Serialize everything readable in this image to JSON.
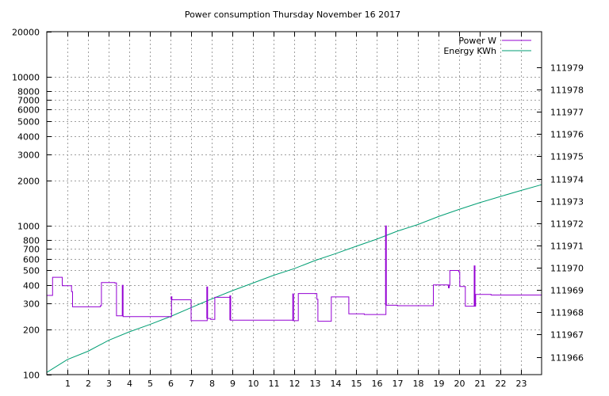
{
  "chart_data": {
    "type": "line",
    "title": "Power consumption Thursday November 16 2017",
    "xlabel": "",
    "ylabel": "",
    "x_range": [
      0,
      24
    ],
    "x_ticks": [
      1,
      2,
      3,
      4,
      5,
      6,
      7,
      8,
      9,
      10,
      11,
      12,
      13,
      14,
      15,
      16,
      17,
      18,
      19,
      20,
      21,
      22,
      23
    ],
    "y_scale": "log",
    "y_range": [
      100,
      20000
    ],
    "y_ticks": [
      {
        "value": 100,
        "label": "100"
      },
      {
        "value": 200,
        "label": "200"
      },
      {
        "value": 300,
        "label": "300"
      },
      {
        "value": 400,
        "label": "400"
      },
      {
        "value": 500,
        "label": "500"
      },
      {
        "value": 600,
        "label": "600"
      },
      {
        "value": 700,
        "label": "700"
      },
      {
        "value": 800,
        "label": "800"
      },
      {
        "value": 1000,
        "label": "1000"
      },
      {
        "value": 2000,
        "label": "2000"
      },
      {
        "value": 3000,
        "label": "3000"
      },
      {
        "value": 4000,
        "label": "4000"
      },
      {
        "value": 5000,
        "label": "5000"
      },
      {
        "value": 6000,
        "label": "6000"
      },
      {
        "value": 7000,
        "label": "7000"
      },
      {
        "value": 8000,
        "label": "8000"
      },
      {
        "value": 10000,
        "label": "10000"
      },
      {
        "value": 20000,
        "label": "20000"
      }
    ],
    "y2_scale": "log",
    "y2_range": [
      111965.2,
      111980.6
    ],
    "y2_ticks": [
      {
        "value": 111966,
        "label": "111966"
      },
      {
        "value": 111967,
        "label": "111967"
      },
      {
        "value": 111968,
        "label": "111968"
      },
      {
        "value": 111969,
        "label": "111969"
      },
      {
        "value": 111970,
        "label": "111970"
      },
      {
        "value": 111971,
        "label": "111971"
      },
      {
        "value": 111972,
        "label": "111972"
      },
      {
        "value": 111973,
        "label": "111973"
      },
      {
        "value": 111974,
        "label": "111974"
      },
      {
        "value": 111975,
        "label": "111975"
      },
      {
        "value": 111976,
        "label": "111976"
      },
      {
        "value": 111977,
        "label": "111977"
      },
      {
        "value": 111978,
        "label": "111978"
      },
      {
        "value": 111979,
        "label": "111979"
      }
    ],
    "grid": true,
    "legend_position": "top-right",
    "series": [
      {
        "name": "Power W",
        "axis": "y",
        "color": "#9400d3",
        "step": true,
        "points": [
          [
            0.0,
            340
          ],
          [
            0.28,
            450
          ],
          [
            0.75,
            395
          ],
          [
            1.2,
            360
          ],
          [
            1.25,
            285
          ],
          [
            2.6,
            290
          ],
          [
            2.65,
            415
          ],
          [
            3.3,
            412
          ],
          [
            3.38,
            248
          ],
          [
            3.68,
            248
          ],
          [
            3.7,
            245
          ],
          [
            5.1,
            245
          ],
          [
            6.0,
            245
          ],
          [
            6.05,
            318
          ],
          [
            6.95,
            318
          ],
          [
            7.0,
            230
          ],
          [
            7.78,
            238
          ],
          [
            7.95,
            235
          ],
          [
            8.15,
            330
          ],
          [
            8.85,
            330
          ],
          [
            8.9,
            232
          ],
          [
            11.9,
            232
          ],
          [
            11.95,
            230
          ],
          [
            12.2,
            350
          ],
          [
            13.1,
            320
          ],
          [
            13.15,
            228
          ],
          [
            13.75,
            228
          ],
          [
            13.8,
            332
          ],
          [
            14.6,
            332
          ],
          [
            14.65,
            256
          ],
          [
            15.3,
            256
          ],
          [
            15.4,
            253
          ],
          [
            16.4,
            253
          ],
          [
            16.45,
            292
          ],
          [
            17.0,
            290
          ],
          [
            18.7,
            290
          ],
          [
            18.75,
            400
          ],
          [
            19.5,
            395
          ],
          [
            19.55,
            500
          ],
          [
            19.98,
            490
          ],
          [
            20.03,
            390
          ],
          [
            20.25,
            390
          ],
          [
            20.3,
            288
          ],
          [
            20.75,
            288
          ],
          [
            20.8,
            345
          ],
          [
            21.5,
            345
          ],
          [
            21.55,
            342
          ],
          [
            24.0,
            342
          ]
        ],
        "spikes": [
          {
            "x": 3.68,
            "peak": 400
          },
          {
            "x": 6.05,
            "peak": 335
          },
          {
            "x": 7.78,
            "peak": 390
          },
          {
            "x": 8.9,
            "peak": 340
          },
          {
            "x": 11.95,
            "peak": 350
          },
          {
            "x": 16.45,
            "peak": 1000
          },
          {
            "x": 19.5,
            "peak": 380
          },
          {
            "x": 20.75,
            "peak": 540
          }
        ]
      },
      {
        "name": "Energy KWh",
        "axis": "y2",
        "color": "#009e73",
        "step": false,
        "points": [
          [
            0.0,
            111965.3
          ],
          [
            1.0,
            111965.88
          ],
          [
            2.0,
            111966.25
          ],
          [
            3.0,
            111966.74
          ],
          [
            4.0,
            111967.12
          ],
          [
            5.0,
            111967.45
          ],
          [
            6.0,
            111967.81
          ],
          [
            7.0,
            111968.21
          ],
          [
            8.0,
            111968.6
          ],
          [
            9.0,
            111968.97
          ],
          [
            10.0,
            111969.31
          ],
          [
            11.0,
            111969.66
          ],
          [
            12.0,
            111969.96
          ],
          [
            13.0,
            111970.32
          ],
          [
            14.0,
            111970.63
          ],
          [
            15.0,
            111970.96
          ],
          [
            16.0,
            111971.28
          ],
          [
            17.0,
            111971.64
          ],
          [
            18.0,
            111971.94
          ],
          [
            19.0,
            111972.3
          ],
          [
            20.0,
            111972.62
          ],
          [
            21.0,
            111972.92
          ],
          [
            22.0,
            111973.2
          ],
          [
            23.0,
            111973.47
          ],
          [
            24.0,
            111973.73
          ]
        ]
      }
    ]
  }
}
